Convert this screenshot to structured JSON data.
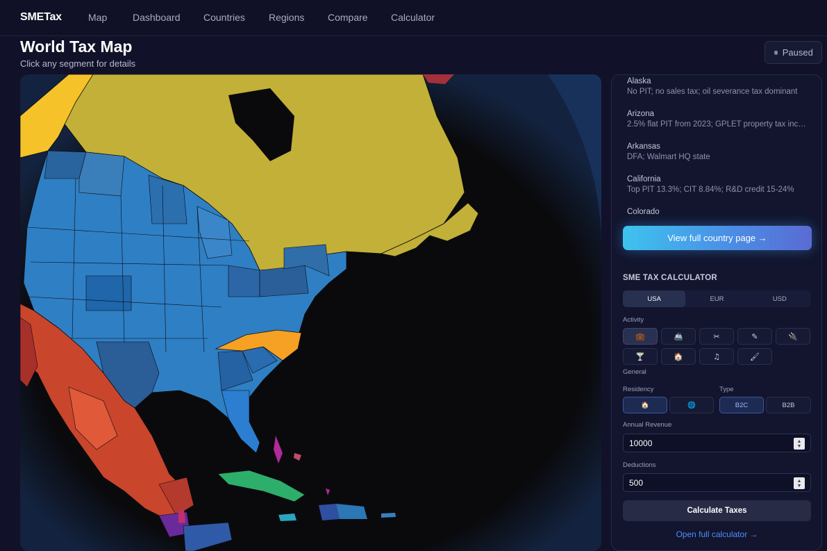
{
  "nav": {
    "brand": "SMETax",
    "links": [
      "Map",
      "Dashboard",
      "Countries",
      "Regions",
      "Compare",
      "Calculator"
    ]
  },
  "header": {
    "title": "World Tax Map",
    "subtitle": "Click any segment for details",
    "paused_icon": "⏸",
    "paused_label": "Paused"
  },
  "states": [
    {
      "name": "Alaska",
      "desc": "No PIT; no sales tax; oil severance tax dominant"
    },
    {
      "name": "Arizona",
      "desc": "2.5% flat PIT from 2023; GPLET property tax incen..."
    },
    {
      "name": "Arkansas",
      "desc": "DFA; Walmart HQ state"
    },
    {
      "name": "California",
      "desc": "Top PIT 13.3%; CIT 8.84%; R&D credit 15-24%"
    },
    {
      "name": "Colorado",
      "desc": ""
    }
  ],
  "view_button": "View full country page →",
  "calculator": {
    "title": "SME TAX CALCULATOR",
    "currencies": [
      "USA",
      "EUR",
      "USD"
    ],
    "activity_label": "Activity",
    "activity_icons_row1": [
      "💼",
      "🚢",
      "✂",
      "✎",
      "🔌"
    ],
    "activity_icons_row2": [
      "🍸",
      "🏠",
      "♫",
      "🖌"
    ],
    "activity_selected": "General",
    "residency_label": "Residency",
    "residency_options": [
      "🏠",
      "🌐"
    ],
    "type_label": "Type",
    "type_options": [
      "B2C",
      "B2B"
    ],
    "revenue_label": "Annual Revenue",
    "revenue_value": "10000",
    "deductions_label": "Deductions",
    "deductions_value": "500",
    "calculate_button": "Calculate Taxes",
    "open_link": "Open full calculator →"
  },
  "colors": {
    "background": "#111129",
    "map_blue": "#2f7fc4",
    "map_canada": "#c2b038",
    "map_mexico": "#c9452c",
    "highlight_state": "#f6a123",
    "accent_link": "#4f8dff"
  }
}
